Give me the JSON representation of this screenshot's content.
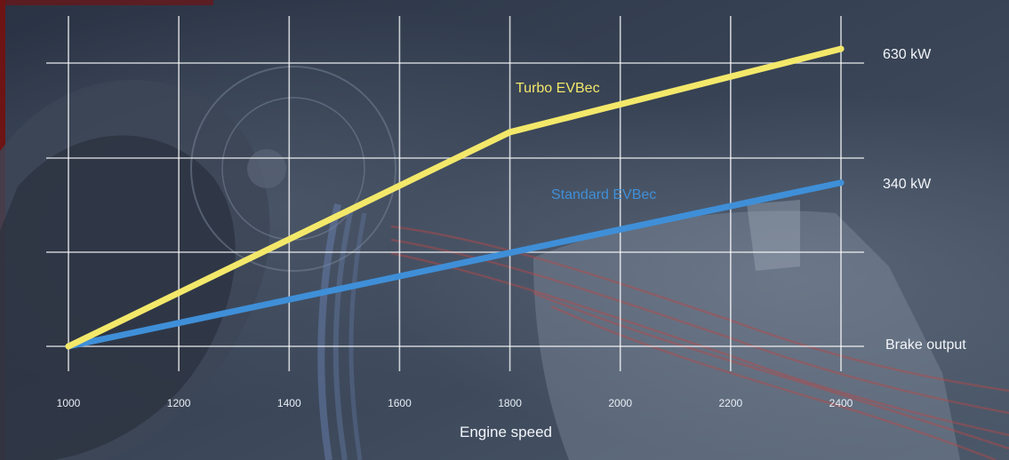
{
  "chart_data": {
    "type": "line",
    "xlabel": "Engine speed",
    "ylabel": "",
    "x_ticks": [
      "1000",
      "1200",
      "1400",
      "1600",
      "1800",
      "2000",
      "2200",
      "2400"
    ],
    "xlim": [
      1000,
      2400
    ],
    "grid": true,
    "legend": "inline labels on series",
    "series": [
      {
        "name": "Turbo EVBec",
        "color": "#f3e86a",
        "x": [
          1000,
          1800,
          2400
        ],
        "y_fraction": [
          0.0,
          0.72,
          1.0
        ],
        "end_label": "630 kW"
      },
      {
        "name": "Standard EVBec",
        "color": "#3f8fd8",
        "x": [
          1000,
          2400
        ],
        "y_fraction": [
          0.0,
          0.55
        ],
        "end_label": "340 kW"
      }
    ],
    "baseline_label": "Brake output"
  }
}
